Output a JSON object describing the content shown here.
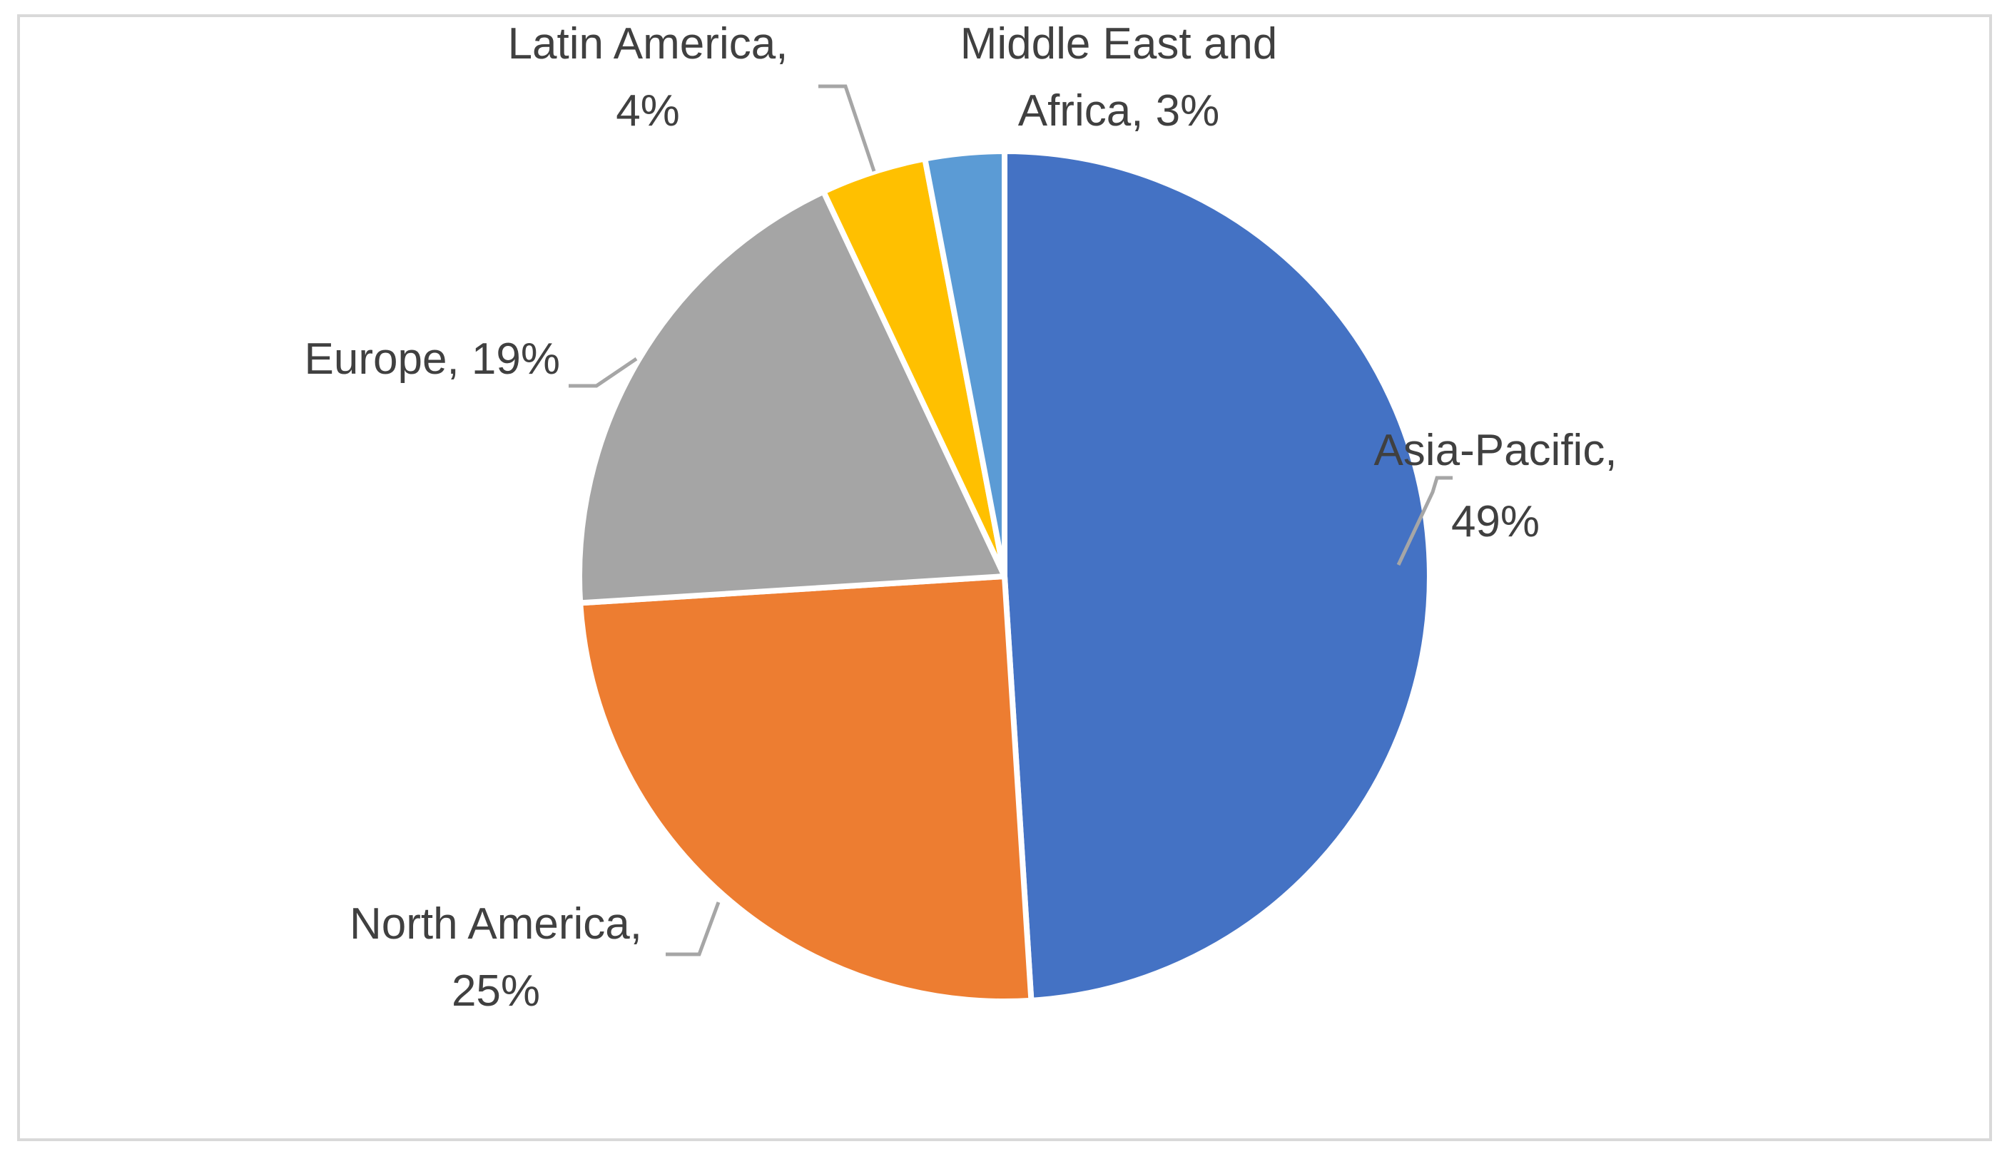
{
  "chart_data": {
    "type": "pie",
    "title": "",
    "start_angle_deg": 0,
    "direction": "clockwise",
    "slices": [
      {
        "label": "Asia-Pacific",
        "value": 49,
        "display": "49%",
        "color": "#4472c4"
      },
      {
        "label": "North America",
        "value": 25,
        "display": "25%",
        "color": "#ed7d31"
      },
      {
        "label": "Europe",
        "value": 19,
        "display": "19%",
        "color": "#a5a5a5"
      },
      {
        "label": "Latin America",
        "value": 4,
        "display": "4%",
        "color": "#ffc000"
      },
      {
        "label": "Middle East and Africa",
        "value": 3,
        "display": "3%",
        "color": "#5b9bd5"
      }
    ],
    "legend": "none",
    "label_style": "category-and-percent-with-leader-lines",
    "leader_line_color": "#a6a6a6",
    "border_color": "#d9d9d9"
  }
}
